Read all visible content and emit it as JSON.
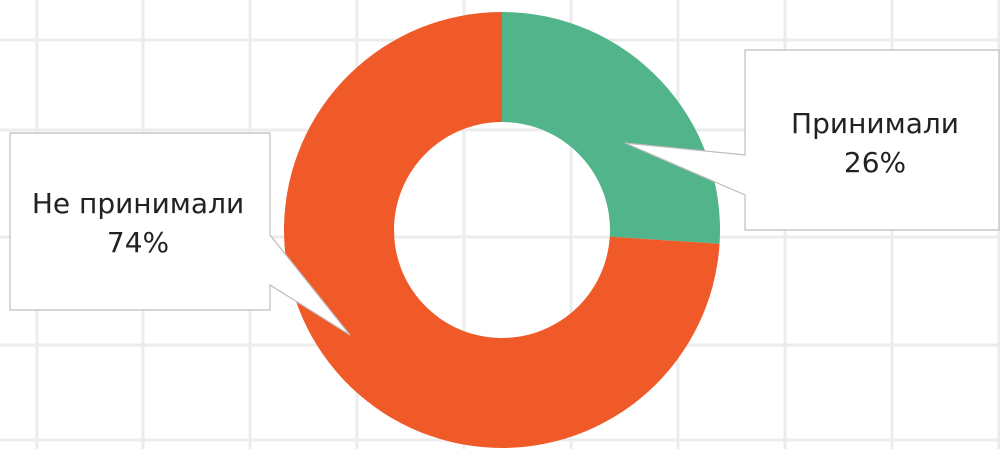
{
  "chart_data": {
    "type": "donut",
    "categories": [
      "Принимали",
      "Не принимали"
    ],
    "values": [
      26,
      74
    ],
    "value_labels": [
      "26%",
      "74%"
    ],
    "colors": [
      "#52b48a",
      "#f05a28"
    ]
  }
}
